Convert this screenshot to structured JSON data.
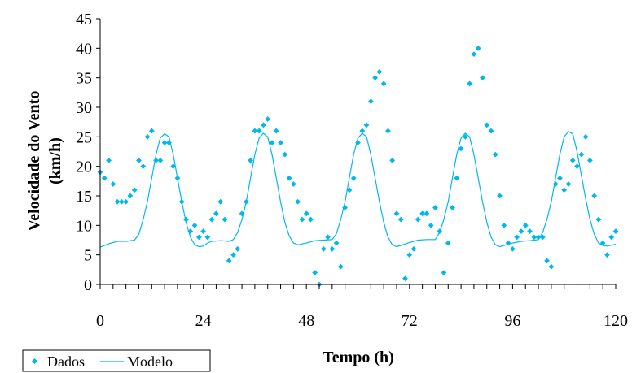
{
  "chart_data": {
    "type": "scatter",
    "xlabel": "Tempo (h)",
    "ylabel_lines": [
      "Velocidade do Vento",
      "(km/h)"
    ],
    "xlim": [
      0,
      120
    ],
    "ylim": [
      0,
      45
    ],
    "xticks": [
      0,
      24,
      48,
      72,
      96,
      120
    ],
    "yticks": [
      0,
      5,
      10,
      15,
      20,
      25,
      30,
      35,
      40,
      45
    ],
    "grid": false,
    "legend": "bottom-left",
    "colors": {
      "dados": "#00b8f0",
      "modelo": "#00b8f0",
      "axis": "#000000"
    },
    "series": [
      {
        "name": "Dados",
        "type": "scatter",
        "points": [
          [
            0,
            19
          ],
          [
            1,
            18
          ],
          [
            2,
            21
          ],
          [
            3,
            17
          ],
          [
            4,
            14
          ],
          [
            5,
            14
          ],
          [
            6,
            14
          ],
          [
            7,
            15
          ],
          [
            8,
            16
          ],
          [
            9,
            21
          ],
          [
            10,
            20
          ],
          [
            11,
            25
          ],
          [
            12,
            26
          ],
          [
            13,
            21
          ],
          [
            14,
            21
          ],
          [
            15,
            24
          ],
          [
            16,
            24
          ],
          [
            17,
            20
          ],
          [
            18,
            18
          ],
          [
            19,
            14
          ],
          [
            20,
            11
          ],
          [
            21,
            9
          ],
          [
            22,
            10
          ],
          [
            23,
            8
          ],
          [
            24,
            9
          ],
          [
            25,
            8
          ],
          [
            26,
            11
          ],
          [
            27,
            12
          ],
          [
            28,
            14
          ],
          [
            29,
            11
          ],
          [
            30,
            4
          ],
          [
            31,
            5
          ],
          [
            32,
            6
          ],
          [
            33,
            12
          ],
          [
            34,
            14
          ],
          [
            35,
            21
          ],
          [
            36,
            26
          ],
          [
            37,
            26
          ],
          [
            38,
            27
          ],
          [
            39,
            28
          ],
          [
            40,
            24
          ],
          [
            41,
            26
          ],
          [
            42,
            24
          ],
          [
            43,
            22
          ],
          [
            44,
            18
          ],
          [
            45,
            17
          ],
          [
            46,
            14
          ],
          [
            47,
            11
          ],
          [
            48,
            12
          ],
          [
            49,
            11
          ],
          [
            50,
            2
          ],
          [
            51,
            0
          ],
          [
            52,
            6
          ],
          [
            53,
            8
          ],
          [
            54,
            6
          ],
          [
            55,
            7
          ],
          [
            56,
            3
          ],
          [
            57,
            13
          ],
          [
            58,
            16
          ],
          [
            59,
            18
          ],
          [
            60,
            24
          ],
          [
            61,
            26
          ],
          [
            62,
            27
          ],
          [
            63,
            31
          ],
          [
            64,
            35
          ],
          [
            65,
            36
          ],
          [
            66,
            34
          ],
          [
            67,
            26
          ],
          [
            68,
            21
          ],
          [
            69,
            12
          ],
          [
            70,
            11
          ],
          [
            71,
            1
          ],
          [
            72,
            5
          ],
          [
            73,
            6
          ],
          [
            74,
            11
          ],
          [
            75,
            12
          ],
          [
            76,
            12
          ],
          [
            77,
            10
          ],
          [
            78,
            13
          ],
          [
            79,
            9
          ],
          [
            80,
            2
          ],
          [
            81,
            7
          ],
          [
            82,
            13
          ],
          [
            83,
            18
          ],
          [
            84,
            23
          ],
          [
            85,
            25
          ],
          [
            86,
            34
          ],
          [
            87,
            39
          ],
          [
            88,
            40
          ],
          [
            89,
            35
          ],
          [
            90,
            27
          ],
          [
            91,
            26
          ],
          [
            92,
            22
          ],
          [
            93,
            15
          ],
          [
            94,
            10
          ],
          [
            95,
            7
          ],
          [
            96,
            6
          ],
          [
            97,
            8
          ],
          [
            98,
            9
          ],
          [
            99,
            10
          ],
          [
            100,
            9
          ],
          [
            101,
            8
          ],
          [
            102,
            8
          ],
          [
            103,
            8
          ],
          [
            104,
            4
          ],
          [
            105,
            3
          ],
          [
            106,
            17
          ],
          [
            107,
            18
          ],
          [
            108,
            16
          ],
          [
            109,
            17
          ],
          [
            110,
            21
          ],
          [
            111,
            20
          ],
          [
            112,
            22
          ],
          [
            113,
            25
          ],
          [
            114,
            21
          ],
          [
            115,
            15
          ],
          [
            116,
            11
          ],
          [
            117,
            7
          ],
          [
            118,
            5
          ],
          [
            119,
            8
          ],
          [
            120,
            9
          ]
        ]
      },
      {
        "name": "Modelo",
        "type": "line",
        "points": [
          [
            0,
            6.3
          ],
          [
            2,
            6.9
          ],
          [
            4,
            7.3
          ],
          [
            6,
            7.3
          ],
          [
            8,
            7.5
          ],
          [
            9,
            8.5
          ],
          [
            10,
            11
          ],
          [
            11,
            14
          ],
          [
            12,
            18
          ],
          [
            13,
            22
          ],
          [
            14,
            24.8
          ],
          [
            15,
            25.5
          ],
          [
            16,
            25
          ],
          [
            17,
            22
          ],
          [
            18,
            18
          ],
          [
            19,
            14
          ],
          [
            20,
            10.5
          ],
          [
            21,
            8
          ],
          [
            22,
            6.7
          ],
          [
            23,
            6.4
          ],
          [
            24,
            6.5
          ],
          [
            25,
            7.0
          ],
          [
            26,
            7.3
          ],
          [
            28,
            7.4
          ],
          [
            30,
            7.3
          ],
          [
            31,
            7.6
          ],
          [
            32,
            8.8
          ],
          [
            33,
            11
          ],
          [
            34,
            14
          ],
          [
            35,
            18
          ],
          [
            36,
            22
          ],
          [
            37,
            24.8
          ],
          [
            38,
            25.6
          ],
          [
            39,
            25
          ],
          [
            40,
            22
          ],
          [
            41,
            18
          ],
          [
            42,
            14
          ],
          [
            43,
            10.5
          ],
          [
            44,
            8.2
          ],
          [
            45,
            7.0
          ],
          [
            46,
            6.7
          ],
          [
            48,
            7.0
          ],
          [
            50,
            7.4
          ],
          [
            52,
            7.5
          ],
          [
            54,
            7.6
          ],
          [
            55,
            8.6
          ],
          [
            56,
            11
          ],
          [
            57,
            14
          ],
          [
            58,
            18
          ],
          [
            59,
            22
          ],
          [
            60,
            24.8
          ],
          [
            61,
            25.6
          ],
          [
            62,
            25
          ],
          [
            63,
            22
          ],
          [
            64,
            18
          ],
          [
            65,
            14
          ],
          [
            66,
            10.5
          ],
          [
            67,
            8
          ],
          [
            68,
            6.7
          ],
          [
            69,
            6.4
          ],
          [
            70,
            6.6
          ],
          [
            72,
            7.1
          ],
          [
            74,
            7.5
          ],
          [
            76,
            7.6
          ],
          [
            78,
            7.6
          ],
          [
            79,
            8.8
          ],
          [
            80,
            11
          ],
          [
            81,
            14
          ],
          [
            82,
            18
          ],
          [
            83,
            22
          ],
          [
            84,
            24.8
          ],
          [
            85,
            25.6
          ],
          [
            86,
            25
          ],
          [
            87,
            22
          ],
          [
            88,
            18
          ],
          [
            89,
            14
          ],
          [
            90,
            10.5
          ],
          [
            91,
            8
          ],
          [
            92,
            6.7
          ],
          [
            93,
            6.4
          ],
          [
            94,
            6.6
          ],
          [
            96,
            7.0
          ],
          [
            98,
            7.3
          ],
          [
            100,
            7.4
          ],
          [
            102,
            7.6
          ],
          [
            103,
            8.8
          ],
          [
            104,
            11
          ],
          [
            105,
            14
          ],
          [
            106,
            18
          ],
          [
            107,
            22
          ],
          [
            108,
            25
          ],
          [
            109,
            25.9
          ],
          [
            110,
            25.5
          ],
          [
            111,
            22.5
          ],
          [
            112,
            18.5
          ],
          [
            113,
            14.5
          ],
          [
            114,
            11
          ],
          [
            115,
            8.5
          ],
          [
            116,
            7.0
          ],
          [
            117,
            6.6
          ],
          [
            118,
            6.5
          ],
          [
            120,
            6.8
          ]
        ]
      }
    ]
  }
}
